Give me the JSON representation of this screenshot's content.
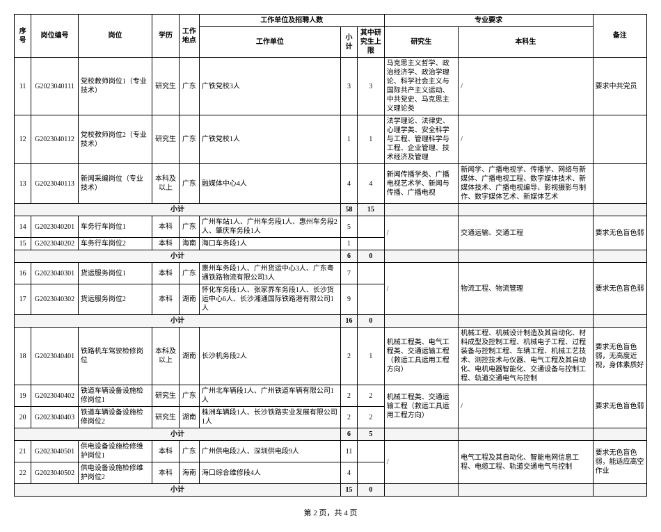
{
  "headers": {
    "seq": "序号",
    "code": "岗位编号",
    "position": "岗位",
    "education": "学历",
    "location": "工作地点",
    "unit_group": "工作单位及招聘人数",
    "unit": "工作单位",
    "sub": "小计",
    "grad_cap": "其中研究生上限",
    "req_group": "专业要求",
    "grad_req": "研究生",
    "under_req": "本科生",
    "remark": "备注",
    "subtotal_label": "小计"
  },
  "rows": [
    {
      "seq": "11",
      "code": "G2023040111",
      "pos": "党校教师岗位1（专业技术）",
      "edu": "研究生",
      "loc": "广东",
      "unit": "广铁党校3人",
      "sub": "3",
      "grad": "3",
      "gradreq": "马克思主义哲学、政治经济学、政治学理论、科学社会主义与国际共产主义运动、中共党史、马克思主义理论类",
      "underreq": "/",
      "remark": "要求中共党员"
    },
    {
      "seq": "12",
      "code": "G2023040112",
      "pos": "党校教师岗位2（专业技术）",
      "edu": "研究生",
      "loc": "广东",
      "unit": "广铁党校1人",
      "sub": "1",
      "grad": "1",
      "gradreq": "法学理论、法律史、心理学类、安全科学与工程、管理科学与工程、企业管理、技术经济及管理",
      "underreq": "/",
      "remark": ""
    },
    {
      "seq": "13",
      "code": "G2023040113",
      "pos": "新闻采编岗位（专业技术）",
      "edu": "本科及以上",
      "loc": "广东",
      "unit": "融媒体中心4人",
      "sub": "4",
      "grad": "4",
      "gradreq": "新闻传播学类、广播电视艺术学、新闻与传播、广播电视",
      "underreq": "新闻学、广播电视学、传播学、网络与新媒体、广播电视工程、数字媒体技术、新媒体技术、广播电视编导、影视摄影与制作、数字媒体艺术、新媒体艺术",
      "remark": ""
    }
  ],
  "subtotal1": {
    "sub": "58",
    "grad": "15"
  },
  "rows2": [
    {
      "seq": "14",
      "code": "G2023040201",
      "pos": "车务行车岗位1",
      "edu": "本科",
      "loc": "广东",
      "unit": "广州车站1人、广州车务段1人、惠州车务段2人、肇庆车务段1人",
      "sub": "5",
      "grad": "",
      "gradreq": "/",
      "underreq": "交通运输、交通工程",
      "remark": "要求无色盲色弱",
      "rowspan": 2
    },
    {
      "seq": "15",
      "code": "G2023040202",
      "pos": "车务行车岗位2",
      "edu": "本科",
      "loc": "海南",
      "unit": "海口车务段1人",
      "sub": "1",
      "grad": ""
    }
  ],
  "subtotal2": {
    "sub": "6",
    "grad": "0"
  },
  "rows3": [
    {
      "seq": "16",
      "code": "G2023040301",
      "pos": "货运服务岗位1",
      "edu": "本科",
      "loc": "广东",
      "unit": "惠州车务段1人、广州货运中心3人、广东粤通铁路物流有限公司3人",
      "sub": "7",
      "grad": "",
      "gradreq": "/",
      "underreq": "物流工程、物流管理",
      "remark": "要求无色盲色弱",
      "rowspan": 2
    },
    {
      "seq": "17",
      "code": "G2023040302",
      "pos": "货运服务岗位2",
      "edu": "本科",
      "loc": "湖南",
      "unit": "怀化车务段1人、张家界车务段1人、长沙货运中心6人、长沙湘通国际铁路港有限公司1人",
      "sub": "9",
      "grad": ""
    }
  ],
  "subtotal3": {
    "sub": "16",
    "grad": "0"
  },
  "rows4": [
    {
      "seq": "18",
      "code": "G2023040401",
      "pos": "铁路机车驾驶检修岗位",
      "edu": "本科及以上",
      "loc": "湖南",
      "unit": "长沙机务段2人",
      "sub": "2",
      "grad": "1",
      "gradreq": "机械工程类、电气工程类、交通运输工程（救运工具运用工程方向）",
      "underreq": "机械工程、机械设计制造及其自动化、材料成型及控制工程、机械电子工程、过程装备与控制工程、车辆工程、机械工艺技术、测控技术与仪器、电气工程及其自动化、电机电器智能化、交通设备与控制工程、轨道交通电气与控制",
      "remark": "要求无色盲色弱，无高度近视，身体素质好"
    }
  ],
  "rows5": [
    {
      "seq": "19",
      "code": "G2023040402",
      "pos": "铁道车辆设备设施检修岗位1",
      "edu": "研究生",
      "loc": "广东",
      "unit": "广州北车辆段1人、广州铁道车辆有限公司1人",
      "sub": "2",
      "grad": "2",
      "gradreq": "机械工程类、交通运输工程（救运工具运用工程方向）",
      "underreq": "/",
      "remark": "要求无色盲色弱",
      "rowspan": 2
    },
    {
      "seq": "20",
      "code": "G2023040403",
      "pos": "铁道车辆设备设施检修岗位2",
      "edu": "研究生",
      "loc": "湖南",
      "unit": "株洲车辆段1人、长沙铁路实业发展有限公司1人",
      "sub": "2",
      "grad": "2"
    }
  ],
  "subtotal5": {
    "sub": "6",
    "grad": "5"
  },
  "rows6": [
    {
      "seq": "21",
      "code": "G2023040501",
      "pos": "供电设备设施检修维护岗位1",
      "edu": "本科",
      "loc": "广东",
      "unit": "广州供电段2人、深圳供电段9人",
      "sub": "11",
      "grad": "",
      "gradreq": "/",
      "underreq": "电气工程及其自动化、智能电网信息工程、电缆工程、轨道交通电气与控制",
      "remark": "要求无色盲色弱，能适应高空作业",
      "rowspan": 2
    },
    {
      "seq": "22",
      "code": "G2023040502",
      "pos": "供电设备设施检修维护岗位2",
      "edu": "本科",
      "loc": "海南",
      "unit": "海口综合维修段4人",
      "sub": "4",
      "grad": ""
    }
  ],
  "subtotal6": {
    "sub": "15",
    "grad": "0"
  },
  "footer": "第 2 页，共 4 页"
}
